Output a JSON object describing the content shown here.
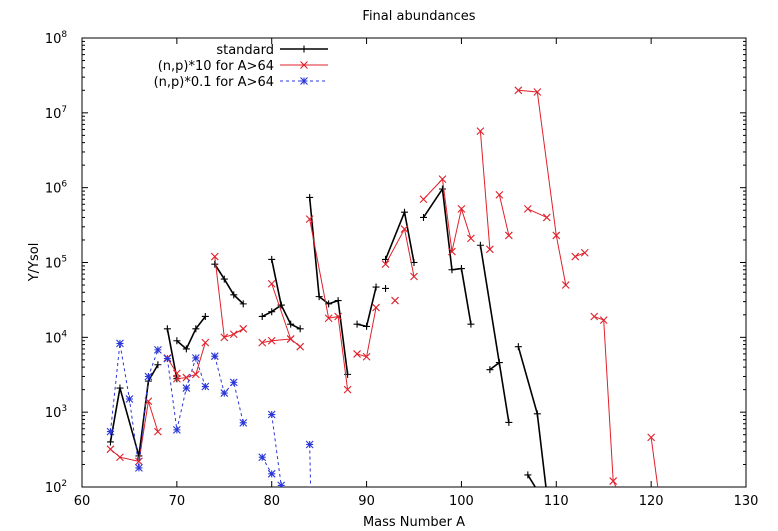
{
  "chart_data": {
    "type": "line",
    "title": "Final abundances",
    "xlabel": "Mass Number A",
    "ylabel": "Y/Ysol",
    "xlim": [
      60,
      130
    ],
    "ylim": [
      100,
      100000000
    ],
    "yscale": "log",
    "grid": false,
    "legend_position": "top-left",
    "x_ticks": [
      60,
      70,
      80,
      90,
      100,
      110,
      120,
      130
    ],
    "x_tick_labels": [
      "60",
      "70",
      "80",
      "90",
      "100",
      "110",
      "120",
      "130"
    ],
    "y_ticks": [
      100,
      1000,
      10000,
      100000,
      1000000,
      10000000,
      100000000
    ],
    "y_tick_labels": [
      {
        "base": "10",
        "exp": "2"
      },
      {
        "base": "10",
        "exp": "3"
      },
      {
        "base": "10",
        "exp": "4"
      },
      {
        "base": "10",
        "exp": "5"
      },
      {
        "base": "10",
        "exp": "6"
      },
      {
        "base": "10",
        "exp": "7"
      },
      {
        "base": "10",
        "exp": "8"
      }
    ],
    "series": [
      {
        "name": "standard",
        "color": "#000000",
        "marker": "plus",
        "dashed": false,
        "segments": [
          [
            [
              63,
              400
            ],
            [
              64,
              2100
            ],
            [
              66,
              260
            ],
            [
              67,
              2600
            ],
            [
              68,
              4300
            ]
          ],
          [
            [
              69,
              13000
            ],
            [
              70,
              2800
            ]
          ],
          [
            [
              70,
              9000
            ],
            [
              71,
              7000
            ],
            [
              72,
              13000
            ],
            [
              73,
              19000
            ]
          ],
          [
            [
              74,
              95000
            ],
            [
              75,
              60000
            ],
            [
              76,
              37000
            ],
            [
              77,
              28000
            ]
          ],
          [
            [
              79,
              19000
            ],
            [
              80,
              22000
            ],
            [
              81,
              27000
            ],
            [
              82,
              15000
            ],
            [
              83,
              13000
            ]
          ],
          [
            [
              80,
              110000
            ],
            [
              81,
              27000
            ]
          ],
          [
            [
              84,
              740000
            ],
            [
              85,
              35000
            ],
            [
              86,
              28000
            ],
            [
              87,
              31000
            ],
            [
              88,
              3200
            ]
          ],
          [
            [
              89,
              15000
            ],
            [
              90,
              14000
            ],
            [
              91,
              47000
            ]
          ],
          [
            [
              92,
              110000
            ],
            [
              94,
              470000
            ],
            [
              95,
              100000
            ]
          ],
          [
            [
              92,
              45000
            ]
          ],
          [
            [
              96,
              400000
            ],
            [
              98,
              960000
            ],
            [
              99,
              80000
            ],
            [
              100,
              83000
            ],
            [
              101,
              15000
            ]
          ],
          [
            [
              102,
              170000
            ],
            [
              105,
              730
            ]
          ],
          [
            [
              103,
              3700
            ],
            [
              104,
              4600
            ]
          ],
          [
            [
              106,
              7500
            ],
            [
              108,
              950
            ],
            [
              109,
              80
            ]
          ],
          [
            [
              107,
              145
            ],
            [
              108,
              90
            ]
          ]
        ]
      },
      {
        "name": "(n,p)*10 for A>64",
        "color": "#e0202a",
        "marker": "cross",
        "dashed": false,
        "segments": [
          [
            [
              63,
              320
            ],
            [
              64,
              250
            ],
            [
              66,
              220
            ],
            [
              67,
              1400
            ],
            [
              68,
              550
            ]
          ],
          [
            [
              69,
              5300
            ],
            [
              70,
              3300
            ]
          ],
          [
            [
              70,
              2800
            ],
            [
              71,
              2900
            ],
            [
              72,
              3200
            ],
            [
              73,
              8500
            ]
          ],
          [
            [
              74,
              120000
            ],
            [
              75,
              10000
            ],
            [
              76,
              11000
            ],
            [
              77,
              13000
            ]
          ],
          [
            [
              79,
              8500
            ],
            [
              80,
              9000
            ],
            [
              82,
              9500
            ],
            [
              83,
              7500
            ]
          ],
          [
            [
              80,
              52000
            ],
            [
              82,
              9500
            ]
          ],
          [
            [
              84,
              380000
            ],
            [
              86,
              18000
            ],
            [
              87,
              19000
            ],
            [
              88,
              2000
            ]
          ],
          [
            [
              89,
              6000
            ],
            [
              90,
              5500
            ],
            [
              91,
              25000
            ]
          ],
          [
            [
              92,
              95000
            ],
            [
              94,
              280000
            ],
            [
              95,
              65000
            ]
          ],
          [
            [
              93,
              31000
            ]
          ],
          [
            [
              96,
              700000
            ],
            [
              98,
              1300000
            ],
            [
              99,
              140000
            ],
            [
              100,
              520000
            ],
            [
              101,
              210000
            ]
          ],
          [
            [
              102,
              5700000
            ],
            [
              103,
              150000
            ]
          ],
          [
            [
              104,
              800000
            ],
            [
              105,
              230000
            ]
          ],
          [
            [
              106,
              20000000
            ],
            [
              108,
              19000000
            ],
            [
              110,
              230000
            ],
            [
              111,
              50000
            ]
          ],
          [
            [
              107,
              520000
            ],
            [
              109,
              400000
            ]
          ],
          [
            [
              112,
              120000
            ],
            [
              113,
              135000
            ]
          ],
          [
            [
              114,
              19000
            ],
            [
              115,
              17000
            ],
            [
              116,
              120
            ],
            [
              116.3,
              100
            ]
          ],
          [
            [
              120,
              460
            ],
            [
              120.7,
              100
            ]
          ]
        ]
      },
      {
        "name": "(n,p)*0.1 for A>64",
        "color": "#2a36d8",
        "marker": "star",
        "dashed": true,
        "segments": [
          [
            [
              63,
              550
            ],
            [
              64,
              8300
            ],
            [
              65,
              1500
            ],
            [
              66,
              180
            ],
            [
              67,
              3000
            ],
            [
              68,
              6800
            ]
          ],
          [
            [
              69,
              5200
            ],
            [
              70,
              580
            ],
            [
              71,
              2100
            ],
            [
              72,
              5300
            ],
            [
              73,
              2200
            ]
          ],
          [
            [
              74,
              5600
            ],
            [
              75,
              1800
            ],
            [
              76,
              2500
            ],
            [
              77,
              720
            ]
          ],
          [
            [
              79,
              250
            ],
            [
              80,
              150
            ]
          ],
          [
            [
              80,
              930
            ],
            [
              81,
              105
            ],
            [
              81.05,
              100
            ]
          ],
          [
            [
              84,
              370
            ],
            [
              84.1,
              100
            ]
          ]
        ]
      }
    ]
  }
}
